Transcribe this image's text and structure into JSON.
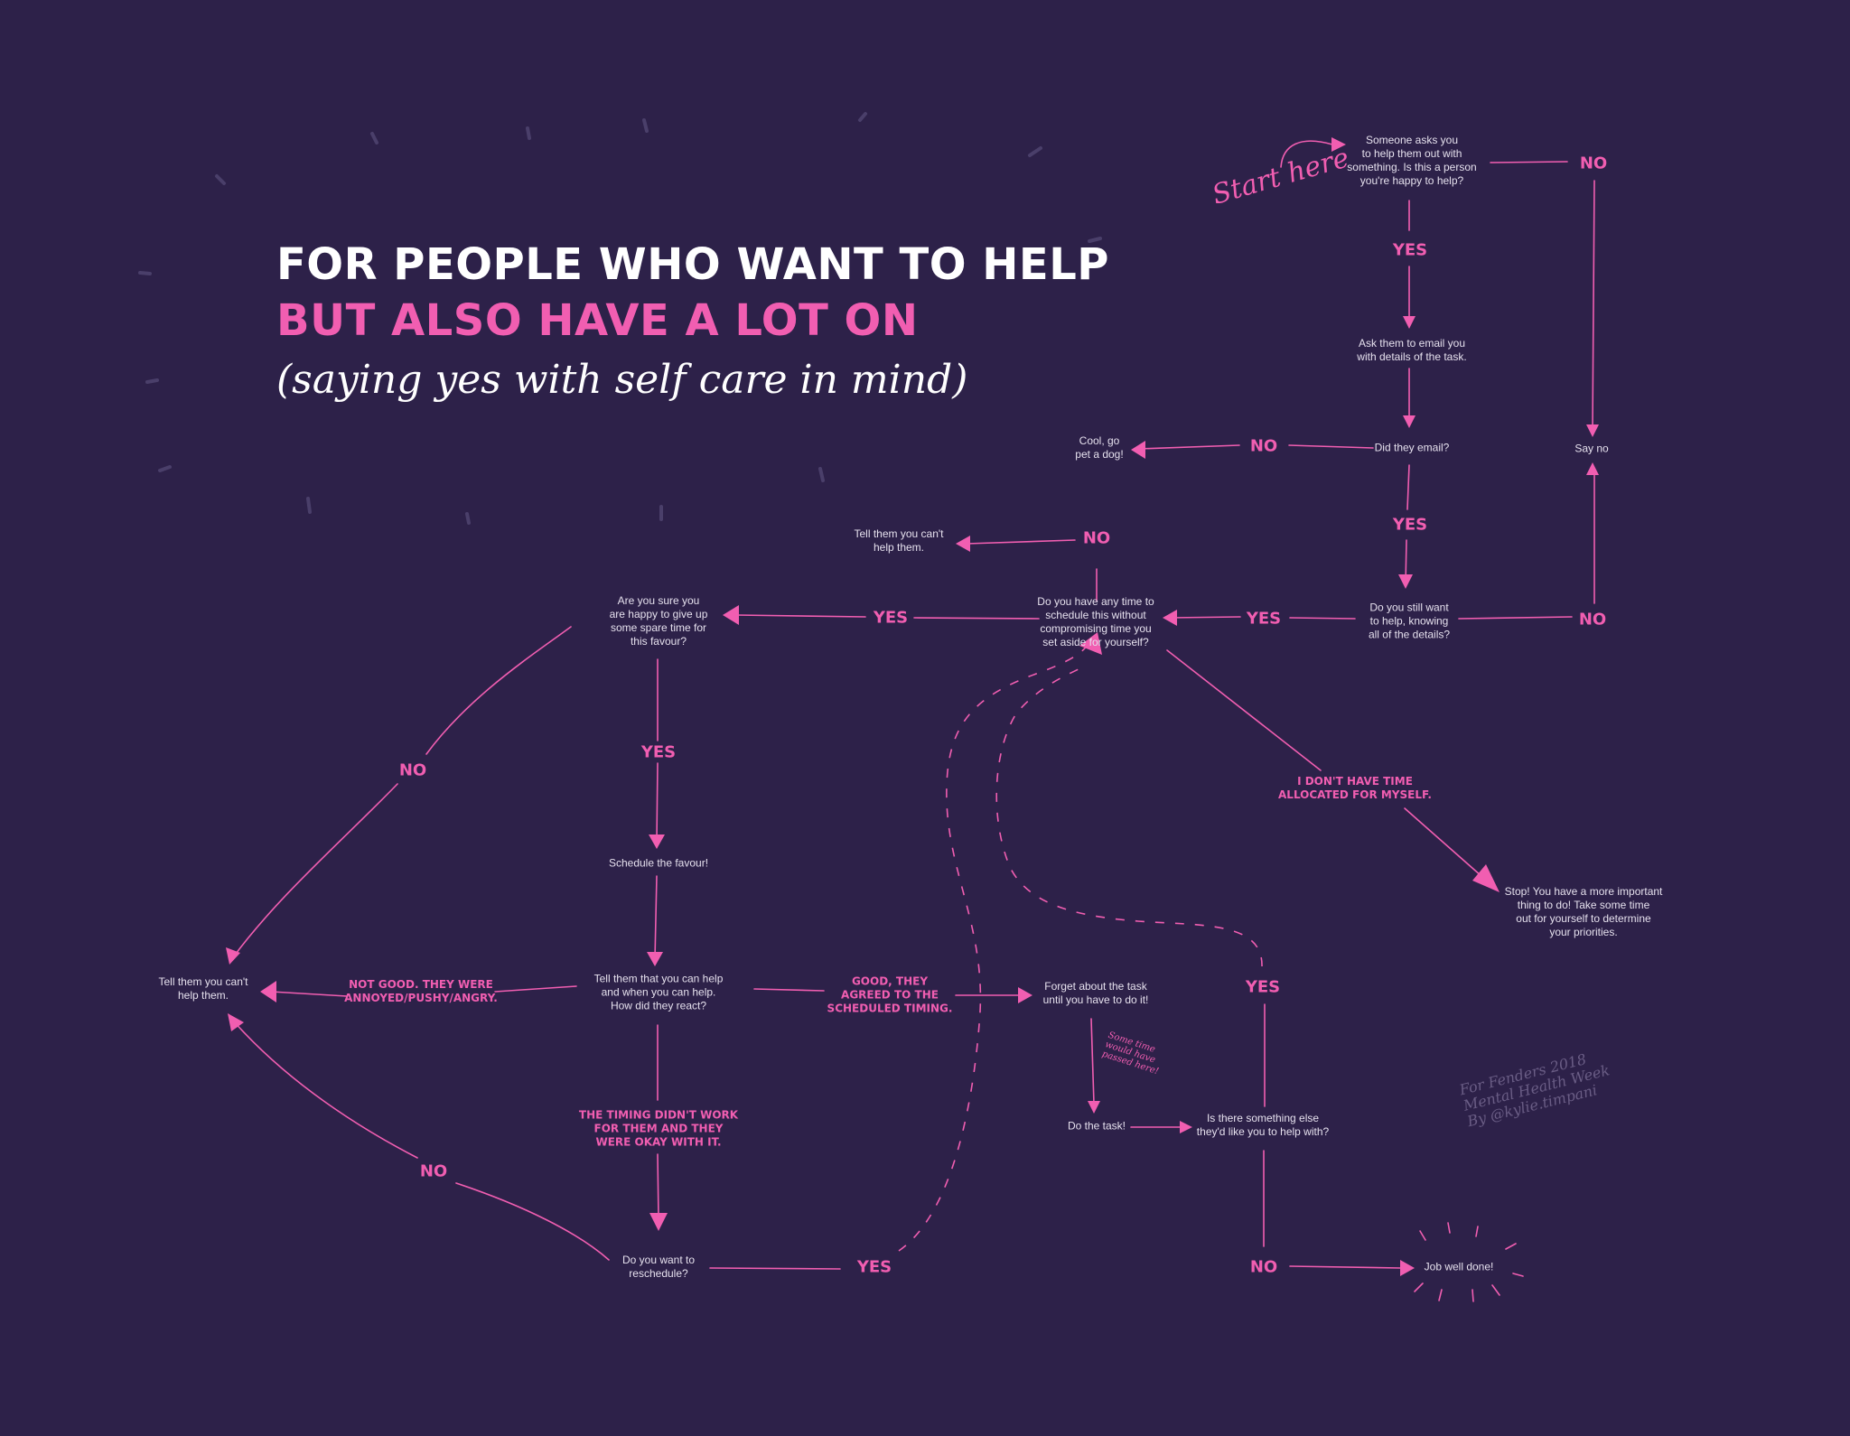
{
  "title": {
    "line1": "FOR PEOPLE WHO WANT TO HELP",
    "line2": "BUT ALSO HAVE A LOT ON",
    "line3": "(saying yes with self care in mind)"
  },
  "start_label": "Start here",
  "nodes": {
    "n1": "Someone asks you\nto help them out with\nsomething. Is this a person\nyou're happy to help?",
    "n2": "Ask them to email you\nwith details of the task.",
    "n3": "Did they email?",
    "n4": "Cool, go\npet a dog!",
    "n5": "Say no",
    "n6": "Do you still want\nto help, knowing\nall of the details?",
    "n7": "Do you have any time to\nschedule this without\ncompromising time you\nset aside for yourself?",
    "n8": "Tell them you can't\nhelp them.",
    "n9": "Are you sure you\nare happy to give up\nsome spare time for\nthis favour?",
    "n10": "Stop! You have a more important\nthing to do! Take some time\nout for yourself to determine\nyour priorities.",
    "n11": "Schedule the favour!",
    "n12": "Tell them that you can help\nand when you can help.\nHow did they react?",
    "n13": "Tell them you can't\nhelp them.",
    "n14": "Forget about the task\nuntil you have to do it!",
    "n15": "Do the task!",
    "n16": "Is there something else\nthey'd like you to help with?",
    "n17": "Do you want to\nreschedule?",
    "n18": "Job well done!"
  },
  "labels": {
    "l_no1": "NO",
    "l_yes1": "YES",
    "l_no2": "NO",
    "l_yes2": "YES",
    "l_no3": "NO",
    "l_yes3": "YES",
    "l_no4": "NO",
    "l_yes4": "YES",
    "l_notime": "I DON'T HAVE TIME\nALLOCATED FOR MYSELF.",
    "l_no5": "NO",
    "l_yes5": "YES",
    "l_notgood": "NOT GOOD. THEY WERE\nANNOYED/PUSHY/ANGRY.",
    "l_good": "GOOD, THEY\nAGREED TO THE\nSCHEDULED TIMING.",
    "l_timing": "THE TIMING DIDN'T WORK\nFOR THEM AND THEY\nWERE OKAY WITH IT.",
    "l_no6": "NO",
    "l_yes6": "YES",
    "l_yes7": "YES",
    "l_no7": "NO"
  },
  "time_note": "Some time\nwould have\npassed here!",
  "credit": "For Fenders 2018\nMental Health Week\nBy @kylie.timpani",
  "colors": {
    "background": "#2d2149",
    "accent": "#f15eb1",
    "text": "#e6e1ee",
    "title": "#ffffff"
  }
}
